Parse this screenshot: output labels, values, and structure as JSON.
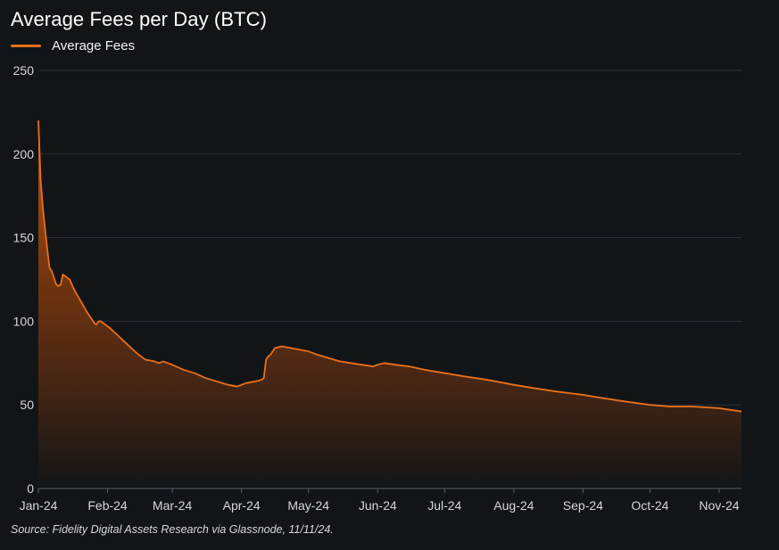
{
  "title": "Average Fees per Day (BTC)",
  "source": "Source: Fidelity Digital Assets Research via Glassnode, 11/11/24.",
  "colors": {
    "background": "#121517",
    "series": "#e8701a",
    "grid": "#2e3236"
  },
  "chart_data": {
    "type": "area",
    "title": "Average Fees per Day (BTC)",
    "xlabel": "",
    "ylabel": "",
    "ylim": [
      0,
      250
    ],
    "yticks": [
      0,
      50,
      100,
      150,
      200,
      250
    ],
    "xticks": [
      "Jan-24",
      "Feb-24",
      "Mar-24",
      "Apr-24",
      "May-24",
      "Jun-24",
      "Jul-24",
      "Aug-24",
      "Sep-24",
      "Oct-24",
      "Nov-24"
    ],
    "xrange": [
      "2024-01-01",
      "2024-11-11"
    ],
    "grid": true,
    "legend": "top-left",
    "series": [
      {
        "name": "Average Fees",
        "points": [
          [
            "2024-01-01",
            220
          ],
          [
            "2024-01-02",
            185
          ],
          [
            "2024-01-03",
            168
          ],
          [
            "2024-01-04",
            155
          ],
          [
            "2024-01-05",
            143
          ],
          [
            "2024-01-06",
            132
          ],
          [
            "2024-01-07",
            130
          ],
          [
            "2024-01-08",
            126
          ],
          [
            "2024-01-09",
            122
          ],
          [
            "2024-01-10",
            121
          ],
          [
            "2024-01-11",
            122
          ],
          [
            "2024-01-12",
            128
          ],
          [
            "2024-01-13",
            127
          ],
          [
            "2024-01-15",
            125
          ],
          [
            "2024-01-17",
            119
          ],
          [
            "2024-01-20",
            112
          ],
          [
            "2024-01-23",
            105
          ],
          [
            "2024-01-26",
            99
          ],
          [
            "2024-01-27",
            98
          ],
          [
            "2024-01-28",
            100
          ],
          [
            "2024-01-29",
            100
          ],
          [
            "2024-02-02",
            96
          ],
          [
            "2024-02-06",
            91
          ],
          [
            "2024-02-10",
            86
          ],
          [
            "2024-02-14",
            81
          ],
          [
            "2024-02-18",
            77
          ],
          [
            "2024-02-22",
            76
          ],
          [
            "2024-02-24",
            75
          ],
          [
            "2024-02-26",
            76
          ],
          [
            "2024-03-01",
            74
          ],
          [
            "2024-03-06",
            71
          ],
          [
            "2024-03-11",
            69
          ],
          [
            "2024-03-16",
            66
          ],
          [
            "2024-03-21",
            64
          ],
          [
            "2024-03-26",
            62
          ],
          [
            "2024-03-30",
            61
          ],
          [
            "2024-04-03",
            63
          ],
          [
            "2024-04-07",
            64
          ],
          [
            "2024-04-10",
            65
          ],
          [
            "2024-04-11",
            66
          ],
          [
            "2024-04-12",
            77
          ],
          [
            "2024-04-13",
            79
          ],
          [
            "2024-04-14",
            80
          ],
          [
            "2024-04-16",
            84
          ],
          [
            "2024-04-19",
            85
          ],
          [
            "2024-04-23",
            84
          ],
          [
            "2024-04-27",
            83
          ],
          [
            "2024-05-01",
            82
          ],
          [
            "2024-05-05",
            80
          ],
          [
            "2024-05-10",
            78
          ],
          [
            "2024-05-15",
            76
          ],
          [
            "2024-05-20",
            75
          ],
          [
            "2024-05-25",
            74
          ],
          [
            "2024-05-30",
            73
          ],
          [
            "2024-06-01",
            74
          ],
          [
            "2024-06-04",
            75
          ],
          [
            "2024-06-09",
            74
          ],
          [
            "2024-06-15",
            73
          ],
          [
            "2024-06-22",
            71
          ],
          [
            "2024-07-01",
            69
          ],
          [
            "2024-07-10",
            67
          ],
          [
            "2024-07-20",
            65
          ],
          [
            "2024-08-01",
            62
          ],
          [
            "2024-08-10",
            60
          ],
          [
            "2024-08-20",
            58
          ],
          [
            "2024-09-01",
            56
          ],
          [
            "2024-09-10",
            54
          ],
          [
            "2024-09-20",
            52
          ],
          [
            "2024-10-01",
            50
          ],
          [
            "2024-10-10",
            49
          ],
          [
            "2024-10-20",
            49
          ],
          [
            "2024-11-01",
            48
          ],
          [
            "2024-11-11",
            46
          ]
        ]
      }
    ]
  }
}
